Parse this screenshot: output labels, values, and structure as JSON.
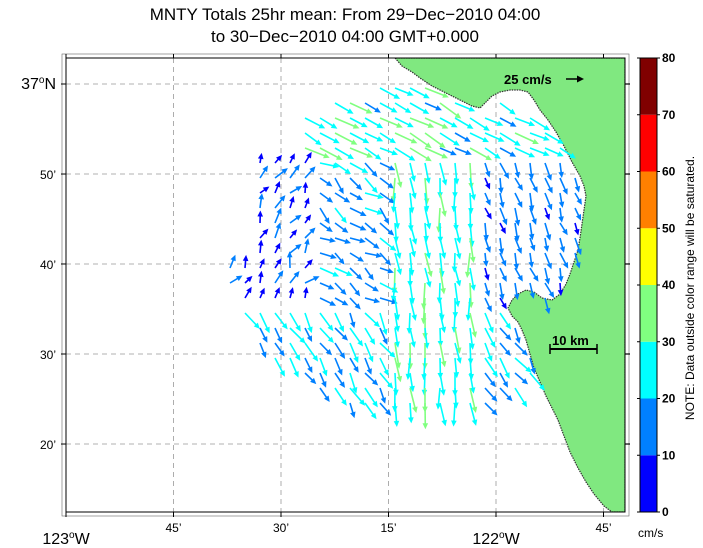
{
  "title": {
    "line1": "MNTY Totals 25hr mean: From 29−Dec−2010 04:00",
    "line2": "to 30−Dec−2010 04:00 GMT+0.000"
  },
  "axes": {
    "x_ticks": [
      {
        "lon": -123.0,
        "deg": "123",
        "sup": "o",
        "suffix": "W",
        "major": true
      },
      {
        "lon": -122.75,
        "label": "45’"
      },
      {
        "lon": -122.5,
        "label": "30’"
      },
      {
        "lon": -122.25,
        "label": "15’"
      },
      {
        "lon": -122.0,
        "deg": "122",
        "sup": "o",
        "suffix": "W",
        "major": true
      },
      {
        "lon": -121.75,
        "label": "45’"
      }
    ],
    "y_ticks": [
      {
        "lat": 37.0,
        "deg": "37",
        "sup": "o",
        "suffix": "N",
        "major": true
      },
      {
        "lat": 36.8333,
        "label": "50’"
      },
      {
        "lat": 36.6667,
        "label": "40’"
      },
      {
        "lat": 36.5,
        "label": "30’"
      },
      {
        "lat": 36.3333,
        "label": "20’"
      }
    ],
    "lon_range": [
      -123.0,
      -121.7
    ],
    "lat_range": [
      36.21,
      37.05
    ]
  },
  "reference_arrow": {
    "label": "25 cm/s",
    "speed": 25
  },
  "scale_bar": {
    "label": "10 km"
  },
  "colorbar": {
    "ticks": [
      "0",
      "10",
      "20",
      "30",
      "40",
      "50",
      "60",
      "70",
      "80"
    ],
    "colors": [
      "#0000ff",
      "#0080ff",
      "#00ffff",
      "#80ff80",
      "#ffff00",
      "#ff8000",
      "#ff0000",
      "#800000"
    ],
    "unit": "cm/s",
    "note": "NOTE: Data outside color range will be saturated."
  },
  "colors": {
    "land": "#80e880",
    "coast": "#333333",
    "grid": "#999999"
  }
}
